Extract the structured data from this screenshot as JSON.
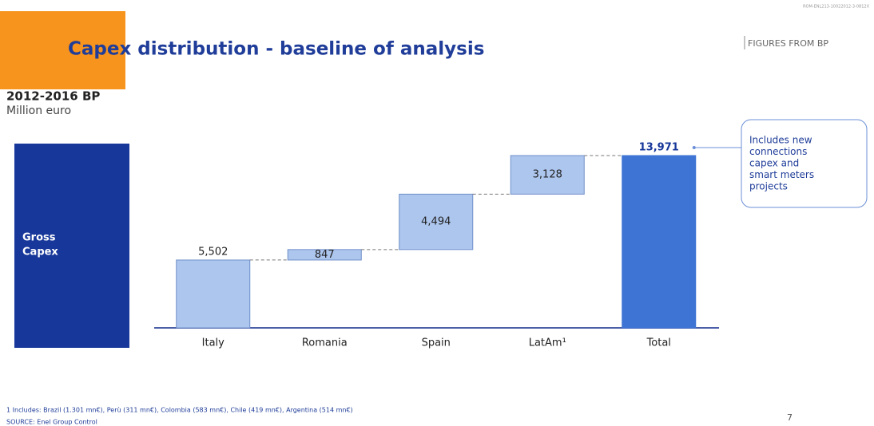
{
  "slide": {
    "code": "ROM-ENL213-10022012-3-0812X",
    "tag": "FIGURES FROM BP",
    "side_label": [
      "Gross",
      "Capex"
    ],
    "footnote": "1 Includes: Brazil (1.301 mn€), Perù (311 mn€), Colombia (583 mn€), Chile (419 mn€), Argentina (514 mn€)",
    "source": "SOURCE: Enel Group Control",
    "page": "7"
  },
  "chart_data": {
    "type": "waterfall",
    "title": "Capex distribution - baseline of analysis",
    "subtitle": "2012-2016 BP",
    "unit": "Million euro",
    "categories": [
      "Italy",
      "Romania",
      "Spain",
      "LatAm¹",
      "Total"
    ],
    "values": [
      5502,
      847,
      4494,
      3128,
      13971
    ],
    "value_labels": [
      "5,502",
      "847",
      "4,494",
      "3,128",
      "13,971"
    ],
    "is_total": [
      false,
      false,
      false,
      false,
      true
    ],
    "color": "#adc6ee",
    "total_color": "#3e74d4",
    "annotation": [
      "Includes new",
      "connections",
      "capex and",
      "smart meters",
      "projects"
    ]
  }
}
